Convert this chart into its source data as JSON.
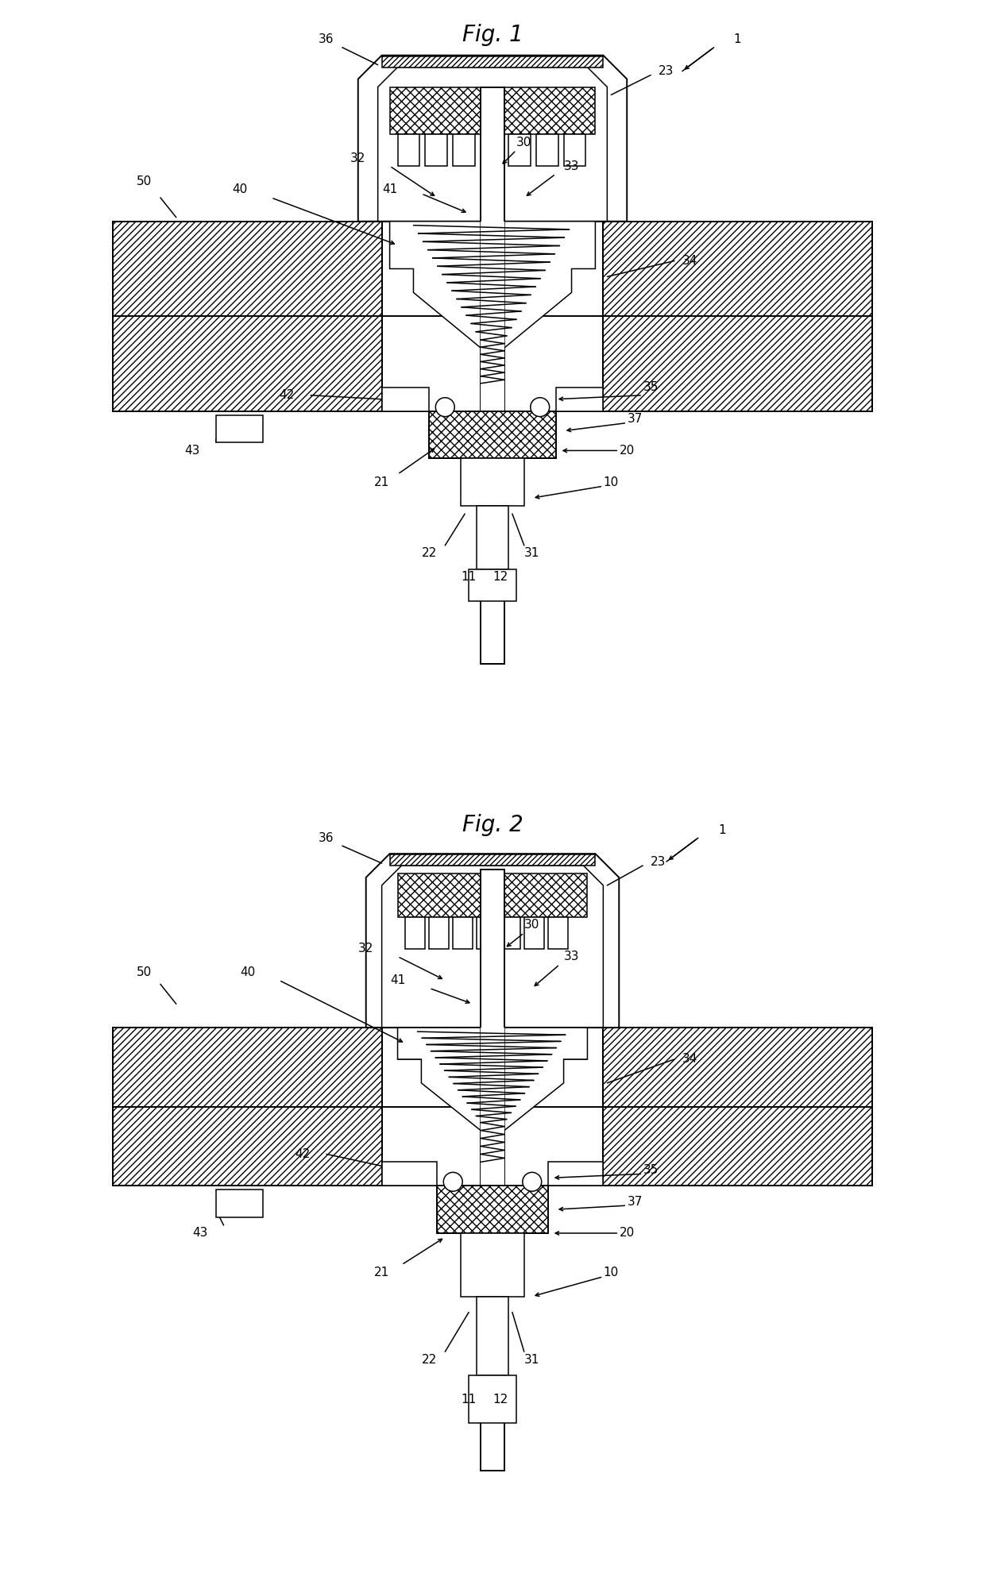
{
  "fig_title1": "Fig. 1",
  "fig_title2": "Fig. 2",
  "bg_color": "#ffffff",
  "line_color": "#000000",
  "title_fontsize": 20,
  "ref_fontsize": 11
}
